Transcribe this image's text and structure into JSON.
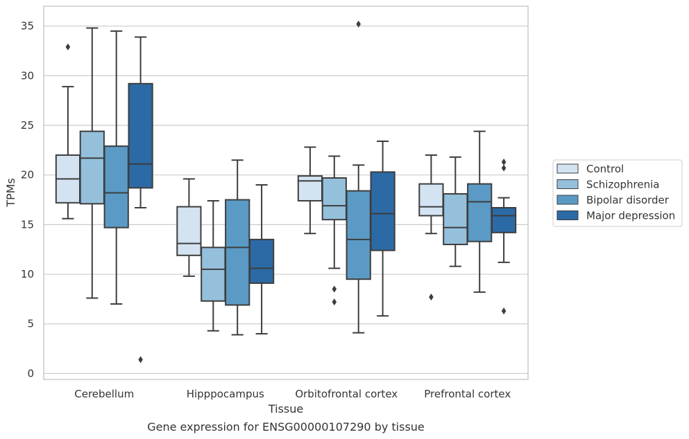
{
  "chart_data": {
    "type": "box",
    "caption": "Gene expression for ENSG00000107290 by tissue",
    "xlabel": "Tissue",
    "ylabel": "TPMs",
    "ylim": [
      -0.6,
      37
    ],
    "yticks": [
      0,
      5,
      10,
      15,
      20,
      25,
      30,
      35
    ],
    "grid": "horizontal",
    "legend_position": "right",
    "categories": [
      "Cerebellum",
      "Hipppocampus",
      "Orbitofrontal cortex",
      "Prefrontal cortex"
    ],
    "series": [
      {
        "name": "Control",
        "color": "#d4e3f2",
        "boxes": [
          {
            "whisker_low": 15.6,
            "q1": 17.2,
            "median": 19.6,
            "q3": 22.0,
            "whisker_high": 28.9,
            "outliers": [
              32.9
            ]
          },
          {
            "whisker_low": 9.8,
            "q1": 11.9,
            "median": 13.1,
            "q3": 16.8,
            "whisker_high": 19.6,
            "outliers": []
          },
          {
            "whisker_low": 14.1,
            "q1": 17.4,
            "median": 19.4,
            "q3": 19.9,
            "whisker_high": 22.8,
            "outliers": []
          },
          {
            "whisker_low": 14.1,
            "q1": 15.9,
            "median": 16.8,
            "q3": 19.1,
            "whisker_high": 22.0,
            "outliers": [
              7.7
            ]
          }
        ]
      },
      {
        "name": "Schizophrenia",
        "color": "#94c0dc",
        "boxes": [
          {
            "whisker_low": 7.6,
            "q1": 17.1,
            "median": 21.7,
            "q3": 24.4,
            "whisker_high": 34.8,
            "outliers": []
          },
          {
            "whisker_low": 4.3,
            "q1": 7.3,
            "median": 10.5,
            "q3": 12.7,
            "whisker_high": 17.4,
            "outliers": []
          },
          {
            "whisker_low": 10.6,
            "q1": 15.5,
            "median": 16.9,
            "q3": 19.7,
            "whisker_high": 21.9,
            "outliers": [
              8.5,
              7.2
            ]
          },
          {
            "whisker_low": 10.8,
            "q1": 13.0,
            "median": 14.7,
            "q3": 18.1,
            "whisker_high": 21.8,
            "outliers": []
          }
        ]
      },
      {
        "name": "Bipolar disorder",
        "color": "#5a9ac5",
        "boxes": [
          {
            "whisker_low": 7.0,
            "q1": 14.7,
            "median": 18.2,
            "q3": 22.9,
            "whisker_high": 34.5,
            "outliers": []
          },
          {
            "whisker_low": 3.9,
            "q1": 6.9,
            "median": 12.7,
            "q3": 17.5,
            "whisker_high": 21.5,
            "outliers": []
          },
          {
            "whisker_low": 4.1,
            "q1": 9.5,
            "median": 13.5,
            "q3": 18.4,
            "whisker_high": 21.0,
            "outliers": [
              35.2
            ]
          },
          {
            "whisker_low": 8.2,
            "q1": 13.3,
            "median": 17.3,
            "q3": 19.1,
            "whisker_high": 24.4,
            "outliers": []
          }
        ]
      },
      {
        "name": "Major depression",
        "color": "#2c6aa6",
        "boxes": [
          {
            "whisker_low": 16.7,
            "q1": 18.7,
            "median": 21.1,
            "q3": 29.2,
            "whisker_high": 33.9,
            "outliers": [
              1.4
            ]
          },
          {
            "whisker_low": 4.0,
            "q1": 9.1,
            "median": 10.6,
            "q3": 13.5,
            "whisker_high": 19.0,
            "outliers": []
          },
          {
            "whisker_low": 5.8,
            "q1": 12.4,
            "median": 16.1,
            "q3": 20.3,
            "whisker_high": 23.4,
            "outliers": []
          },
          {
            "whisker_low": 11.2,
            "q1": 14.2,
            "median": 15.9,
            "q3": 16.7,
            "whisker_high": 17.7,
            "outliers": [
              21.3,
              20.7,
              6.3
            ]
          }
        ]
      }
    ]
  }
}
